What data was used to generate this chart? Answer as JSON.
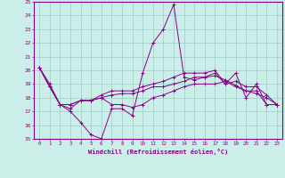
{
  "xlabel": "Windchill (Refroidissement éolien,°C)",
  "xlim": [
    -0.5,
    23.5
  ],
  "ylim": [
    15,
    25
  ],
  "yticks": [
    15,
    16,
    17,
    18,
    19,
    20,
    21,
    22,
    23,
    24,
    25
  ],
  "xticks": [
    0,
    1,
    2,
    3,
    4,
    5,
    6,
    7,
    8,
    9,
    10,
    11,
    12,
    13,
    14,
    15,
    16,
    17,
    18,
    19,
    20,
    21,
    22,
    23
  ],
  "bg_color": "#cceee8",
  "line_color": "#880088",
  "grid_color": "#99cccc",
  "lines": [
    [
      20.2,
      19.0,
      17.5,
      17.0,
      16.2,
      15.3,
      15.0,
      17.2,
      17.2,
      16.7,
      19.8,
      22.0,
      23.0,
      24.8,
      19.5,
      19.3,
      19.5,
      19.8,
      19.0,
      19.8,
      18.0,
      19.0,
      17.5,
      17.5
    ],
    [
      20.2,
      18.8,
      17.5,
      17.2,
      17.8,
      17.8,
      18.0,
      17.5,
      17.5,
      17.3,
      17.5,
      18.0,
      18.2,
      18.5,
      18.8,
      19.0,
      19.0,
      19.0,
      19.2,
      18.8,
      18.5,
      18.5,
      17.5,
      17.5
    ],
    [
      20.2,
      18.8,
      17.5,
      17.5,
      17.8,
      17.8,
      18.0,
      18.2,
      18.3,
      18.3,
      18.5,
      18.8,
      18.8,
      19.0,
      19.2,
      19.5,
      19.5,
      19.6,
      19.3,
      18.9,
      18.5,
      18.3,
      18.0,
      17.5
    ],
    [
      20.2,
      18.8,
      17.5,
      17.5,
      17.8,
      17.8,
      18.2,
      18.5,
      18.5,
      18.5,
      18.8,
      19.0,
      19.2,
      19.5,
      19.8,
      19.8,
      19.8,
      20.0,
      19.0,
      19.2,
      18.8,
      18.8,
      18.2,
      17.5
    ]
  ]
}
